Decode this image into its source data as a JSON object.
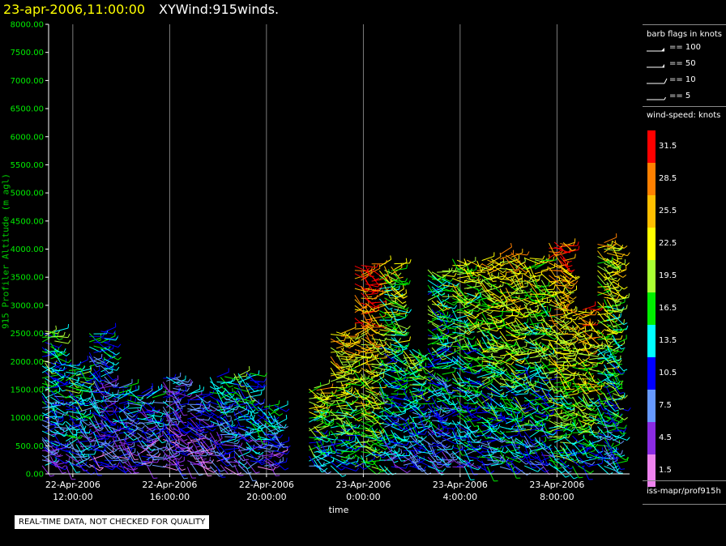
{
  "title": {
    "date": "23-apr-2006,11:00:00",
    "product": "XYWind:915winds."
  },
  "notice": "REAL-TIME DATA, NOT CHECKED FOR QUALITY",
  "legend": {
    "flags_title": "barb flags in knots",
    "flags": [
      {
        "label": "== 100"
      },
      {
        "label": "== 50"
      },
      {
        "label": "== 10"
      },
      {
        "label": "== 5"
      }
    ],
    "colorbar_title": "wind-speed: knots",
    "colorbar": [
      {
        "label": "31.5",
        "color": "#ff0000"
      },
      {
        "label": "28.5",
        "color": "#ff8000"
      },
      {
        "label": "25.5",
        "color": "#ffbf00"
      },
      {
        "label": "22.5",
        "color": "#ffff00"
      },
      {
        "label": "19.5",
        "color": "#aaff33"
      },
      {
        "label": "16.5",
        "color": "#00ee00"
      },
      {
        "label": "13.5",
        "color": "#00ffff"
      },
      {
        "label": "10.5",
        "color": "#0000ff"
      },
      {
        "label": "7.5",
        "color": "#6699ff"
      },
      {
        "label": "4.5",
        "color": "#8a2be2"
      },
      {
        "label": "1.5",
        "color": "#ee82ee"
      }
    ],
    "source": "iss-mapr/prof915h"
  },
  "chart_data": {
    "type": "scatter",
    "xlabel": "time",
    "ylabel": "915 Profiler Altitude (m agl)",
    "ylim": [
      0,
      8000
    ],
    "yticks": [
      "0.00",
      "500.00",
      "1000.00",
      "1500.00",
      "2000.00",
      "2500.00",
      "3000.00",
      "3500.00",
      "4000.00",
      "4500.00",
      "5000.00",
      "5500.00",
      "6000.00",
      "6500.00",
      "7000.00",
      "7500.00",
      "8000.00"
    ],
    "xlim": [
      "22-Apr-2006 11:00:00",
      "23-Apr-2006 11:00:00"
    ],
    "xticks": [
      {
        "date": "22-Apr-2006",
        "time": "12:00:00"
      },
      {
        "date": "22-Apr-2006",
        "time": "16:00:00"
      },
      {
        "date": "22-Apr-2006",
        "time": "20:00:00"
      },
      {
        "date": "23-Apr-2006",
        "time": "0:00:00"
      },
      {
        "date": "23-Apr-2006",
        "time": "4:00:00"
      },
      {
        "date": "23-Apr-2006",
        "time": "8:00:00"
      }
    ],
    "grid": "vertical at x ticks",
    "series": [
      {
        "time": "22-Apr-2006 11:00:00",
        "top": 2600,
        "speed": 12
      },
      {
        "time": "22-Apr-2006 12:00:00",
        "top": 2000,
        "speed": 13
      },
      {
        "time": "22-Apr-2006 13:00:00",
        "top": 2600,
        "speed": 10
      },
      {
        "time": "22-Apr-2006 14:00:00",
        "top": 1600,
        "speed": 10
      },
      {
        "time": "22-Apr-2006 15:00:00",
        "top": 1500,
        "speed": 9
      },
      {
        "time": "22-Apr-2006 16:00:00",
        "top": 1800,
        "speed": 8
      },
      {
        "time": "22-Apr-2006 17:00:00",
        "top": 1500,
        "speed": 7
      },
      {
        "time": "22-Apr-2006 18:00:00",
        "top": 1800,
        "speed": 11
      },
      {
        "time": "22-Apr-2006 19:00:00",
        "top": 1900,
        "speed": 12
      },
      {
        "time": "22-Apr-2006 20:00:00",
        "top": 1300,
        "speed": 11
      },
      {
        "time": "22-Apr-2006 22:00:00",
        "top": 1600,
        "speed": 18
      },
      {
        "time": "22-Apr-2006 23:00:00",
        "top": 2600,
        "speed": 20
      },
      {
        "time": "23-Apr-2006 00:00:00",
        "top": 3800,
        "speed": 24
      },
      {
        "time": "23-Apr-2006 01:00:00",
        "top": 3800,
        "speed": 16
      },
      {
        "time": "23-Apr-2006 02:00:00",
        "top": 2300,
        "speed": 14
      },
      {
        "time": "23-Apr-2006 03:00:00",
        "top": 3700,
        "speed": 14
      },
      {
        "time": "23-Apr-2006 04:00:00",
        "top": 3900,
        "speed": 16
      },
      {
        "time": "23-Apr-2006 05:00:00",
        "top": 3900,
        "speed": 18
      },
      {
        "time": "23-Apr-2006 06:00:00",
        "top": 4000,
        "speed": 19
      },
      {
        "time": "23-Apr-2006 07:00:00",
        "top": 3900,
        "speed": 17
      },
      {
        "time": "23-Apr-2006 08:00:00",
        "top": 4200,
        "speed": 22
      },
      {
        "time": "23-Apr-2006 09:00:00",
        "top": 3000,
        "speed": 21
      },
      {
        "time": "23-Apr-2006 10:00:00",
        "top": 4200,
        "speed": 18
      }
    ]
  }
}
